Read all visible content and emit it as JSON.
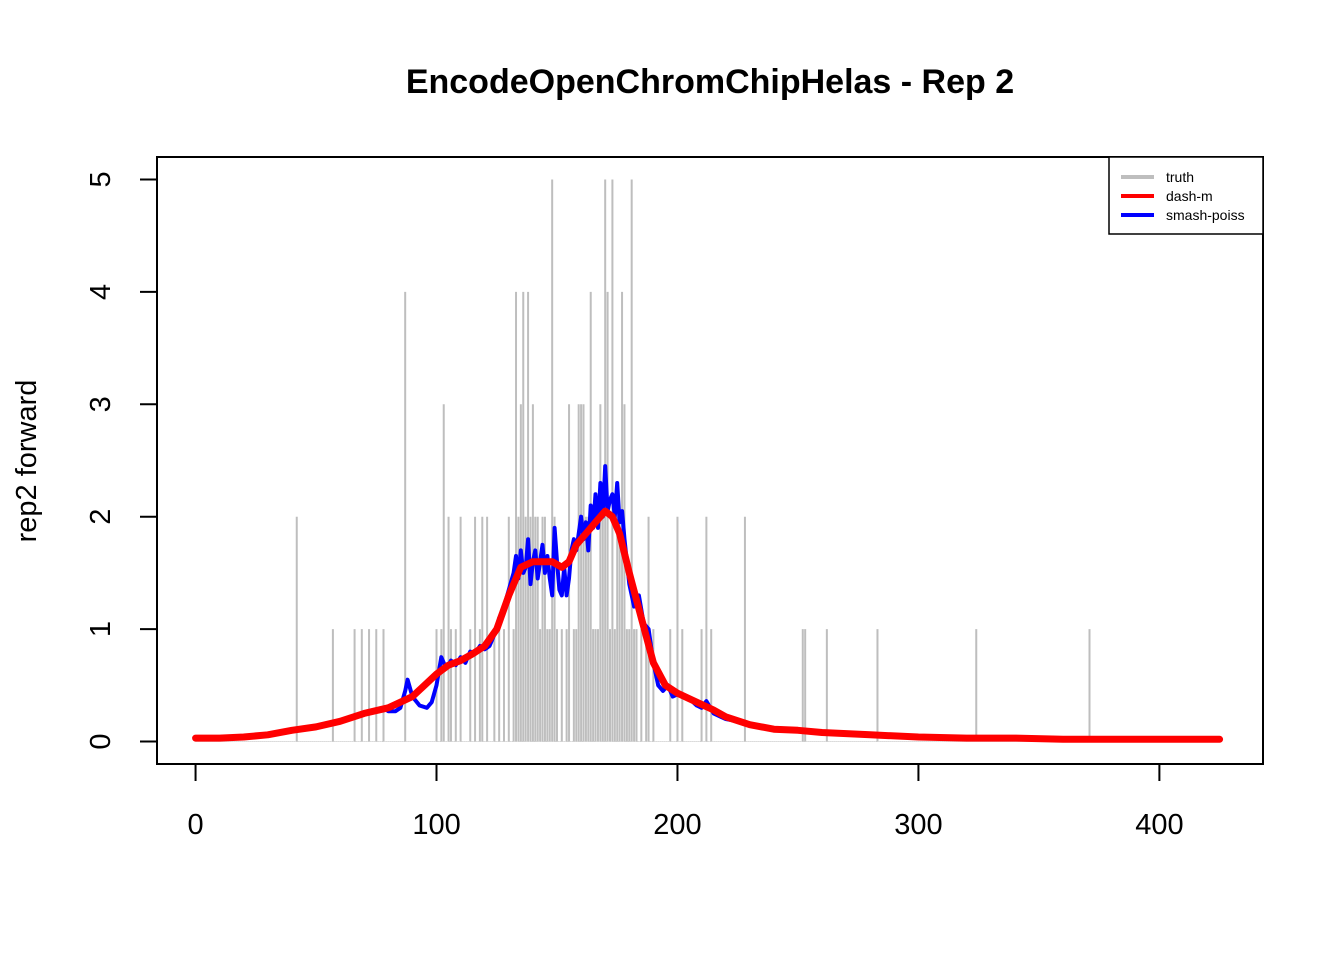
{
  "chart_data": {
    "type": "line",
    "title": "EncodeOpenChromChipHelas - Rep 2",
    "xlabel": "",
    "ylabel": "rep2 forward",
    "xlim": [
      -16,
      443
    ],
    "ylim": [
      -0.2,
      5.2
    ],
    "x_ticks": [
      0,
      100,
      200,
      300,
      400
    ],
    "y_ticks": [
      0,
      1,
      2,
      3,
      4,
      5
    ],
    "grid": false,
    "legend_position": "top-right",
    "legend": [
      {
        "name": "truth",
        "color": "#bebebe"
      },
      {
        "name": "dash-m",
        "color": "#ff0000"
      },
      {
        "name": "smash-poiss",
        "color": "#0000ff"
      }
    ],
    "truth": {
      "color": "#bebebe",
      "x": [
        42,
        57,
        66,
        69,
        72,
        75,
        78,
        87,
        100,
        102,
        103,
        105,
        106,
        108,
        110,
        114,
        116,
        118,
        119,
        121,
        124,
        126,
        128,
        130,
        132,
        133,
        134,
        135,
        136,
        137,
        138,
        139,
        140,
        141,
        142,
        143,
        144,
        145,
        146,
        147,
        148,
        149,
        150,
        152,
        154,
        155,
        157,
        158,
        159,
        160,
        161,
        162,
        163,
        164,
        165,
        166,
        167,
        168,
        169,
        170,
        171,
        172,
        173,
        174,
        175,
        176,
        177,
        178,
        179,
        180,
        181,
        182,
        183,
        185,
        187,
        188,
        190,
        197,
        200,
        202,
        210,
        212,
        214,
        228,
        252,
        253,
        262,
        283,
        324,
        371
      ],
      "y": [
        2,
        1,
        1,
        1,
        1,
        1,
        1,
        4,
        1,
        1,
        3,
        2,
        1,
        1,
        2,
        1,
        2,
        1,
        2,
        2,
        1,
        1,
        1,
        2,
        1,
        4,
        2,
        3,
        4,
        2,
        4,
        2,
        3,
        2,
        2,
        1,
        2,
        2,
        1,
        1,
        5,
        2,
        1,
        1,
        1,
        3,
        1,
        1,
        3,
        3,
        3,
        2,
        2,
        4,
        1,
        1,
        1,
        3,
        2,
        5,
        4,
        1,
        5,
        1,
        2,
        2,
        4,
        3,
        1,
        1,
        5,
        1,
        1,
        1,
        1,
        2,
        1,
        1,
        2,
        1,
        1,
        2,
        1,
        2,
        1,
        1,
        1,
        1,
        1,
        1
      ]
    },
    "series": [
      {
        "name": "dash-m",
        "color": "#ff0000",
        "x": [
          0,
          10,
          20,
          30,
          40,
          50,
          60,
          70,
          80,
          85,
          90,
          95,
          100,
          105,
          110,
          115,
          120,
          125,
          130,
          135,
          140,
          145,
          148,
          152,
          155,
          158,
          162,
          166,
          170,
          173,
          176,
          180,
          185,
          190,
          195,
          200,
          205,
          210,
          215,
          220,
          230,
          240,
          250,
          260,
          270,
          280,
          300,
          320,
          340,
          360,
          380,
          400,
          425
        ],
        "y": [
          0.03,
          0.03,
          0.04,
          0.06,
          0.1,
          0.13,
          0.18,
          0.25,
          0.3,
          0.35,
          0.4,
          0.5,
          0.6,
          0.68,
          0.72,
          0.78,
          0.85,
          1.0,
          1.3,
          1.55,
          1.6,
          1.6,
          1.6,
          1.55,
          1.6,
          1.75,
          1.85,
          1.95,
          2.05,
          2.0,
          1.85,
          1.5,
          1.1,
          0.7,
          0.5,
          0.43,
          0.38,
          0.33,
          0.28,
          0.22,
          0.15,
          0.11,
          0.1,
          0.08,
          0.07,
          0.06,
          0.04,
          0.03,
          0.03,
          0.02,
          0.02,
          0.02,
          0.02
        ]
      },
      {
        "name": "smash-poiss",
        "color": "#0000ff",
        "x": [
          0,
          10,
          20,
          30,
          40,
          50,
          60,
          70,
          75,
          78,
          80,
          83,
          85,
          87,
          88,
          90,
          93,
          96,
          98,
          100,
          102,
          104,
          106,
          108,
          110,
          112,
          114,
          116,
          118,
          120,
          122,
          124,
          126,
          128,
          130,
          132,
          133,
          134,
          135,
          136,
          137,
          138,
          139,
          140,
          141,
          142,
          143,
          144,
          145,
          146,
          147,
          148,
          149,
          150,
          151,
          152,
          153,
          154,
          155,
          156,
          157,
          158,
          159,
          160,
          161,
          162,
          163,
          164,
          165,
          166,
          167,
          168,
          169,
          170,
          171,
          172,
          173,
          174,
          175,
          176,
          177,
          178,
          179,
          180,
          182,
          184,
          186,
          188,
          190,
          192,
          194,
          196,
          198,
          200,
          202,
          205,
          208,
          210,
          212,
          215,
          218,
          220,
          225,
          230,
          240,
          250,
          260,
          270,
          280,
          300,
          320,
          340,
          360,
          380,
          400,
          425
        ],
        "y": [
          0.03,
          0.03,
          0.04,
          0.06,
          0.1,
          0.13,
          0.18,
          0.25,
          0.28,
          0.3,
          0.27,
          0.27,
          0.3,
          0.45,
          0.55,
          0.4,
          0.32,
          0.3,
          0.35,
          0.5,
          0.75,
          0.65,
          0.72,
          0.68,
          0.75,
          0.7,
          0.8,
          0.78,
          0.85,
          0.82,
          0.85,
          0.95,
          1.1,
          1.2,
          1.35,
          1.5,
          1.65,
          1.45,
          1.7,
          1.5,
          1.55,
          1.8,
          1.4,
          1.6,
          1.7,
          1.45,
          1.6,
          1.75,
          1.5,
          1.65,
          1.45,
          1.3,
          1.9,
          1.6,
          1.35,
          1.3,
          1.55,
          1.3,
          1.45,
          1.7,
          1.8,
          1.7,
          1.85,
          2.0,
          1.8,
          1.95,
          1.7,
          2.1,
          1.9,
          2.2,
          1.9,
          2.3,
          2.0,
          2.45,
          2.05,
          2.15,
          2.2,
          2.0,
          2.3,
          1.95,
          2.05,
          1.8,
          1.6,
          1.4,
          1.2,
          1.3,
          1.05,
          1.0,
          0.7,
          0.5,
          0.45,
          0.5,
          0.4,
          0.42,
          0.4,
          0.38,
          0.32,
          0.3,
          0.36,
          0.25,
          0.22,
          0.2,
          0.18,
          0.15,
          0.12,
          0.11,
          0.09,
          0.08,
          0.06,
          0.04,
          0.03,
          0.03,
          0.02,
          0.02,
          0.02,
          0.02
        ]
      }
    ]
  }
}
